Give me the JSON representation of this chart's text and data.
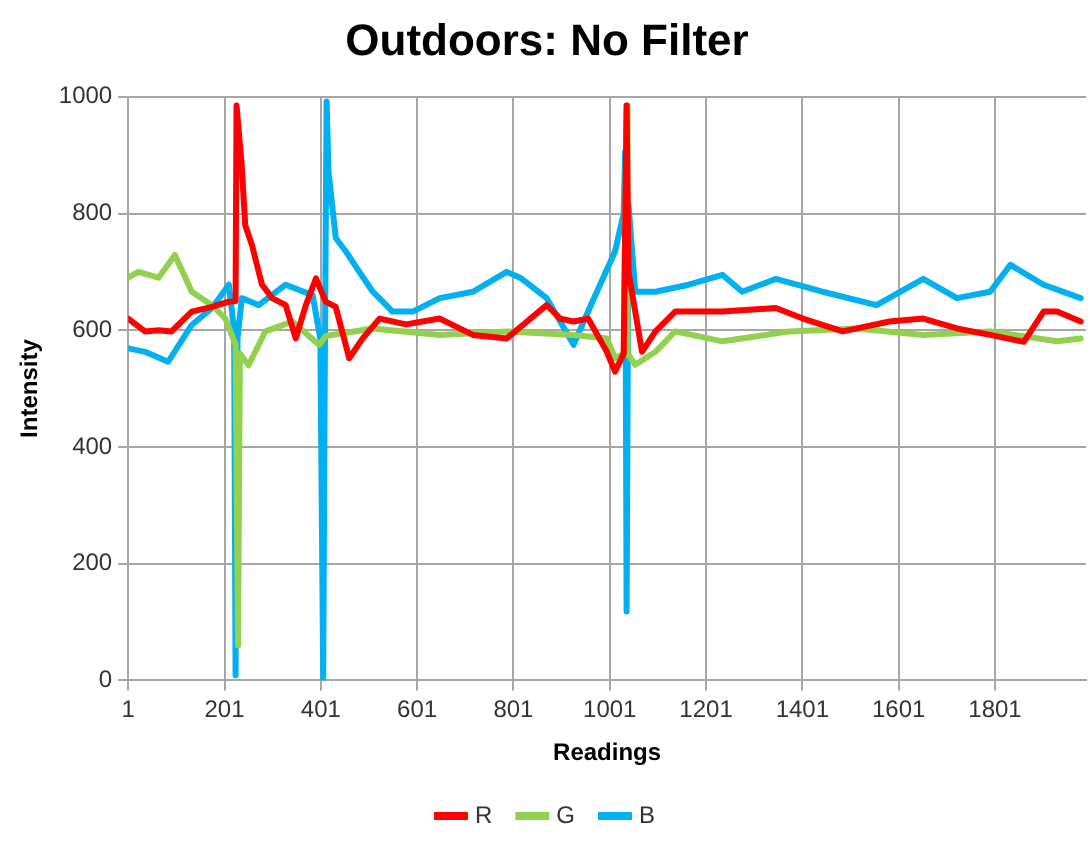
{
  "chart_data": {
    "type": "line",
    "title": "Outdoors: No Filter",
    "xlabel": "Readings",
    "ylabel": "Intensity",
    "xlim": [
      1,
      1990
    ],
    "xticks": [
      1,
      201,
      401,
      601,
      801,
      1001,
      1201,
      1401,
      1601,
      1801
    ],
    "ylim": [
      0,
      1000
    ],
    "yticks": [
      0,
      200,
      400,
      600,
      800,
      1000
    ],
    "grid": true,
    "legend": "bottom",
    "marker": "none",
    "line_style": "solid",
    "series": [
      {
        "name": "R",
        "color": "#ff0000",
        "x": [
          1,
          36,
          64,
          91,
          133,
          175,
          210,
          224,
          226,
          237,
          244,
          258,
          272,
          279,
          300,
          328,
          349,
          370,
          391,
          411,
          432,
          460,
          488,
          523,
          578,
          648,
          717,
          787,
          870,
          898,
          926,
          956,
          995,
          1012,
          1030,
          1036,
          1040,
          1068,
          1096,
          1137,
          1235,
          1346,
          1402,
          1485,
          1582,
          1652,
          1722,
          1791,
          1861,
          1902,
          1930,
          1979
        ],
        "values": [
          620,
          598,
          600,
          598,
          632,
          640,
          649,
          650,
          985,
          880,
          780,
          746,
          700,
          678,
          655,
          643,
          586,
          643,
          689,
          649,
          640,
          552,
          586,
          620,
          610,
          620,
          592,
          586,
          643,
          620,
          615,
          620,
          563,
          529,
          560,
          985,
          700,
          563,
          598,
          632,
          632,
          638,
          620,
          598,
          615,
          620,
          603,
          592,
          580,
          632,
          632,
          615
        ]
      },
      {
        "name": "G",
        "color": "#92d050",
        "x": [
          1,
          22,
          64,
          98,
          133,
          175,
          203,
          224,
          229,
          233,
          251,
          286,
          342,
          397,
          411,
          509,
          648,
          787,
          926,
          995,
          1012,
          1030,
          1036,
          1038,
          1054,
          1096,
          1137,
          1235,
          1374,
          1513,
          1652,
          1791,
          1930,
          1979
        ],
        "values": [
          690,
          700,
          690,
          729,
          666,
          643,
          620,
          575,
          60,
          560,
          540,
          598,
          615,
          575,
          590,
          603,
          592,
          598,
          592,
          586,
          552,
          560,
          985,
          560,
          541,
          563,
          598,
          581,
          598,
          603,
          592,
          598,
          581,
          586
        ]
      },
      {
        "name": "B",
        "color": "#00b0f0",
        "x": [
          1,
          36,
          84,
          133,
          175,
          210,
          221,
          224,
          226,
          228,
          237,
          272,
          328,
          384,
          400,
          406,
          409,
          413,
          417,
          432,
          453,
          481,
          509,
          550,
          592,
          648,
          717,
          787,
          815,
          870,
          926,
          956,
          1012,
          1030,
          1033,
          1036,
          1040,
          1054,
          1096,
          1165,
          1235,
          1276,
          1346,
          1443,
          1555,
          1652,
          1722,
          1791,
          1833,
          1902,
          1979
        ],
        "values": [
          569,
          563,
          546,
          609,
          638,
          678,
          600,
          9,
          300,
          586,
          655,
          643,
          678,
          660,
          586,
          3,
          500,
          992,
          872,
          758,
          735,
          700,
          666,
          632,
          632,
          655,
          666,
          700,
          690,
          655,
          575,
          632,
          735,
          800,
          906,
          118,
          815,
          666,
          666,
          678,
          695,
          666,
          688,
          666,
          643,
          688,
          655,
          666,
          712,
          678,
          655
        ]
      }
    ]
  }
}
